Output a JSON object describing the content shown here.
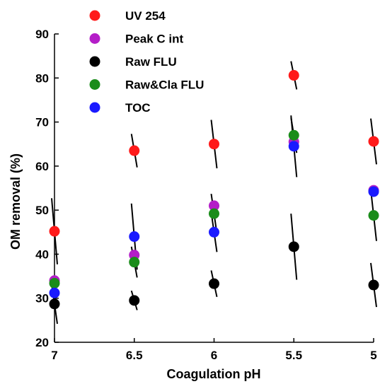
{
  "chart_data": {
    "type": "scatter",
    "title": "",
    "xlabel": "Coagulation pH",
    "ylabel": "OM removal (%)",
    "x": [
      7,
      6.5,
      6,
      5.5,
      5
    ],
    "x_tick_labels": [
      "7",
      "6.5",
      "6",
      "5.5",
      "5"
    ],
    "xlim": [
      7,
      5
    ],
    "x_reversed": true,
    "ylim": [
      20,
      90
    ],
    "y_ticks": [
      20,
      30,
      40,
      50,
      60,
      70,
      80,
      90
    ],
    "grid": false,
    "legend_position": "top-left",
    "series": [
      {
        "name": "UV 254",
        "color": "#ff1a1a",
        "values": [
          45.2,
          63.5,
          65.0,
          80.6,
          65.6
        ],
        "errors": [
          7.5,
          3.8,
          5.5,
          3.2,
          5.2
        ]
      },
      {
        "name": "Peak C int",
        "color": "#b41ec8",
        "values": [
          34.0,
          39.8,
          51.0,
          65.5,
          54.5
        ],
        "errors": [
          0,
          0,
          0,
          0,
          0
        ]
      },
      {
        "name": "Raw FLU",
        "color": "#000000",
        "values": [
          28.7,
          29.5,
          33.3,
          41.7,
          33.0
        ],
        "errors": [
          4.5,
          2.2,
          3.0,
          7.5,
          5.0
        ]
      },
      {
        "name": "Raw&Cla FLU",
        "color": "#1a8c1a",
        "values": [
          33.4,
          38.2,
          49.2,
          67.0,
          48.8
        ],
        "errors": [
          0,
          3.5,
          4.5,
          4.0,
          5.8
        ]
      },
      {
        "name": "TOC",
        "color": "#1a1aff",
        "values": [
          31.2,
          44.0,
          45.0,
          64.5,
          54.2
        ],
        "errors": [
          0,
          7.5,
          4.5,
          7.0,
          0
        ]
      }
    ]
  }
}
